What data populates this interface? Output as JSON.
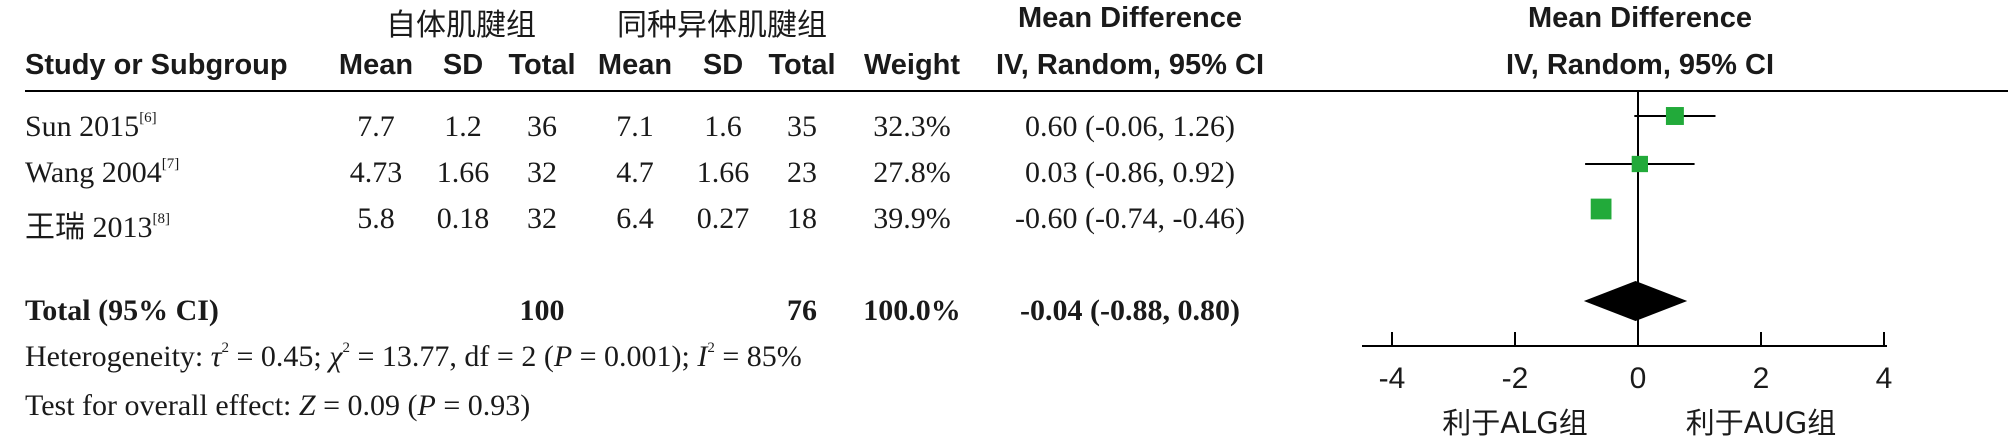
{
  "header": {
    "group1": "自体肌腱组",
    "group2": "同种异体肌腱组",
    "md_title": "Mean Difference",
    "md_sub": "IV, Random, 95% CI",
    "plot_title": "Mean Difference",
    "plot_sub": "IV, Random, 95% CI",
    "study_col": "Study or Subgroup",
    "mean1": "Mean",
    "sd1": "SD",
    "total1": "Total",
    "mean2": "Mean",
    "sd2": "SD",
    "total2": "Total",
    "weight": "Weight"
  },
  "studies": [
    {
      "name": "Sun 2015",
      "ref": "[6]",
      "mean1": "7.7",
      "sd1": "1.2",
      "n1": "36",
      "mean2": "7.1",
      "sd2": "1.6",
      "n2": "35",
      "weight": "32.3%",
      "ci": "0.60 (-0.06, 1.26)"
    },
    {
      "name": "Wang 2004",
      "ref": "[7]",
      "mean1": "4.73",
      "sd1": "1.66",
      "n1": "32",
      "mean2": "4.7",
      "sd2": "1.66",
      "n2": "23",
      "weight": "27.8%",
      "ci": "0.03 (-0.86, 0.92)"
    },
    {
      "name": "王瑞 2013",
      "ref": "[8]",
      "mean1": "5.8",
      "sd1": "0.18",
      "n1": "32",
      "mean2": "6.4",
      "sd2": "0.27",
      "n2": "18",
      "weight": "39.9%",
      "ci": "-0.60 (-0.74, -0.46)"
    }
  ],
  "total": {
    "label": "Total (95% CI)",
    "n1": "100",
    "n2": "76",
    "weight": "100.0%",
    "ci": "-0.04 (-0.88, 0.80)"
  },
  "heterogeneity": {
    "prefix": "Heterogeneity: ",
    "tau": "τ",
    "tau_val": "2",
    "tau_rest": " = 0.45; ",
    "chi": "χ",
    "chi_val": "2",
    "chi_rest": " = 13.77, df = 2 (",
    "p": "P",
    "p_rest": " = 0.001); ",
    "i": "I",
    "i_val": "2",
    "i_rest": " = 85%"
  },
  "overall": {
    "prefix": "Test for overall effect: ",
    "z": "Z",
    "z_rest": " = 0.09 (",
    "p": "P",
    "p_rest": " = 0.93)"
  },
  "chart_data": {
    "type": "forest",
    "x_ticks": [
      "-4",
      "-2",
      "0",
      "2",
      "4"
    ],
    "xlim": [
      -4,
      4
    ],
    "favours_left": "利于ALG组",
    "favours_right": "利于AUG组",
    "marker_color": "#22aa3a",
    "diamond_color": "#000000",
    "points": [
      {
        "study": "Sun 2015",
        "est": 0.6,
        "lo": -0.06,
        "hi": 1.26,
        "weight": 32.3
      },
      {
        "study": "Wang 2004",
        "est": 0.03,
        "lo": -0.86,
        "hi": 0.92,
        "weight": 27.8
      },
      {
        "study": "王瑞 2013",
        "est": -0.6,
        "lo": -0.74,
        "hi": -0.46,
        "weight": 39.9
      }
    ],
    "pooled": {
      "est": -0.04,
      "lo": -0.88,
      "hi": 0.8
    }
  }
}
